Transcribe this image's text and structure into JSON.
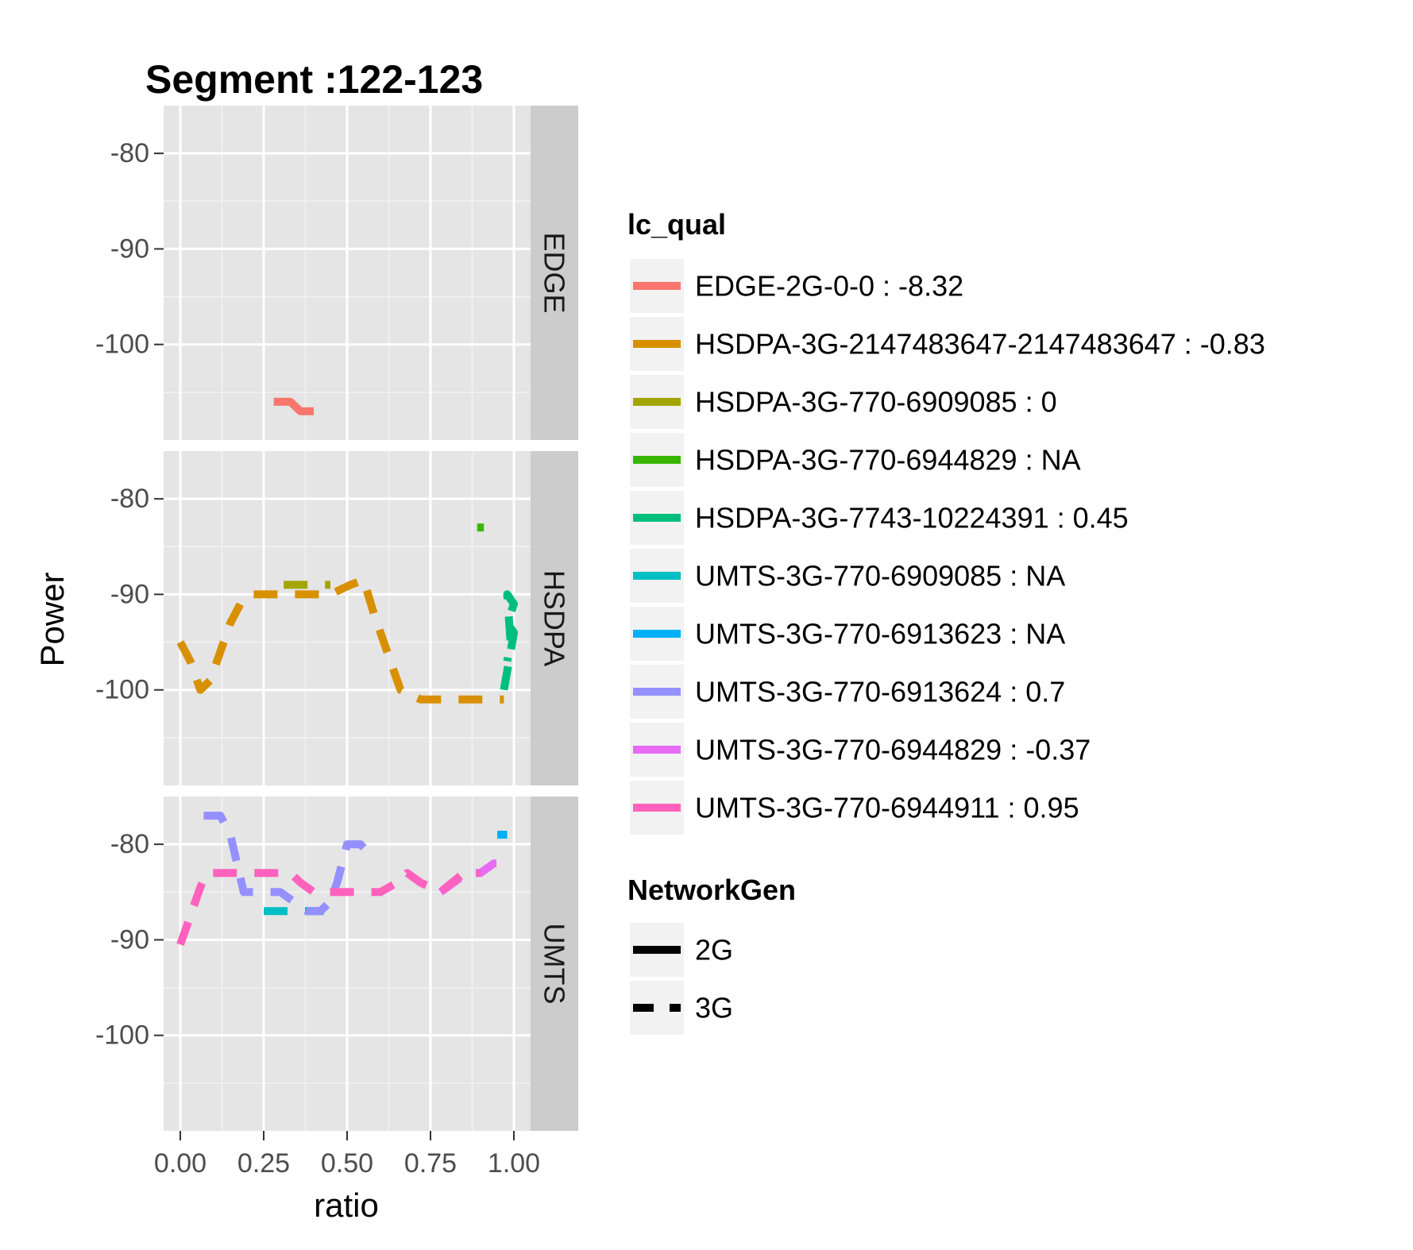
{
  "chart_data": {
    "type": "line",
    "title": "Segment :122-123",
    "xlabel": "ratio",
    "ylabel": "Power",
    "xlim": [
      -0.05,
      1.05
    ],
    "ylim": [
      -110,
      -75
    ],
    "x_ticks": [
      0,
      0.25,
      0.5,
      0.75,
      1.0
    ],
    "x_tick_labels": [
      "0.00",
      "0.25",
      "0.50",
      "0.75",
      "1.00"
    ],
    "y_ticks": [
      -80,
      -90,
      -100
    ],
    "y_tick_labels": [
      "-80",
      "-90",
      "-100"
    ],
    "grid": true,
    "legend_position": "right",
    "facets": [
      "EDGE",
      "HSDPA",
      "UMTS"
    ],
    "legend_color": {
      "title": "lc_qual",
      "entries": [
        {
          "label": "EDGE-2G-0-0 : -8.32",
          "color": "#F8766D"
        },
        {
          "label": "HSDPA-3G-2147483647-2147483647 : -0.83",
          "color": "#D89000"
        },
        {
          "label": "HSDPA-3G-770-6909085 : 0",
          "color": "#A3A500"
        },
        {
          "label": "HSDPA-3G-770-6944829 : NA",
          "color": "#39B600"
        },
        {
          "label": "HSDPA-3G-7743-10224391 : 0.45",
          "color": "#00BF7D"
        },
        {
          "label": "UMTS-3G-770-6909085 : NA",
          "color": "#00BFC4"
        },
        {
          "label": "UMTS-3G-770-6913623 : NA",
          "color": "#00B0F6"
        },
        {
          "label": "UMTS-3G-770-6913624 : 0.7",
          "color": "#9590FF"
        },
        {
          "label": "UMTS-3G-770-6944829 : -0.37",
          "color": "#E76BF3"
        },
        {
          "label": "UMTS-3G-770-6944911 : 0.95",
          "color": "#FF62BC"
        }
      ]
    },
    "legend_linetype": {
      "title": "NetworkGen",
      "entries": [
        {
          "label": "2G",
          "dashed": false
        },
        {
          "label": "3G",
          "dashed": true
        }
      ]
    },
    "series": [
      {
        "facet": "EDGE",
        "color": "#F8766D",
        "dashed": false,
        "x": [
          0.28,
          0.33,
          0.36,
          0.4
        ],
        "y": [
          -106.0,
          -106.0,
          -107.0,
          -107.0
        ]
      },
      {
        "facet": "HSDPA",
        "color": "#D89000",
        "dashed": true,
        "x": [
          0.0,
          0.03,
          0.06,
          0.09,
          0.12,
          0.15,
          0.18,
          0.21,
          0.25,
          0.3,
          0.35,
          0.4,
          0.45,
          0.48,
          0.51,
          0.55,
          0.58,
          0.62,
          0.66,
          0.72,
          0.8,
          0.88,
          0.97
        ],
        "y": [
          -95,
          -97,
          -100,
          -99,
          -96,
          -93,
          -91,
          -90,
          -90,
          -90,
          -90,
          -90,
          -90,
          -89.5,
          -89,
          -88.5,
          -92,
          -96,
          -100,
          -101,
          -101,
          -101,
          -101
        ]
      },
      {
        "facet": "HSDPA",
        "color": "#A3A500",
        "dashed": true,
        "x": [
          0.31,
          0.35,
          0.39,
          0.43,
          0.45
        ],
        "y": [
          -89,
          -89,
          -89,
          -89,
          -89
        ]
      },
      {
        "facet": "HSDPA",
        "color": "#39B600",
        "dashed": false,
        "x": [
          0.89,
          0.91
        ],
        "y": [
          -83,
          -83
        ]
      },
      {
        "facet": "HSDPA",
        "color": "#00BF7D",
        "dashed": true,
        "x": [
          0.97,
          0.98,
          0.99,
          1.0,
          0.98,
          0.99,
          1.0,
          0.98,
          0.99,
          0.98
        ],
        "y": [
          -100,
          -98,
          -96,
          -94,
          -93,
          -92,
          -91,
          -90,
          -95,
          -97
        ]
      },
      {
        "facet": "UMTS",
        "color": "#00BFC4",
        "dashed": true,
        "x": [
          0.25,
          0.3,
          0.35,
          0.4,
          0.43
        ],
        "y": [
          -87,
          -87,
          -87,
          -87,
          -87
        ]
      },
      {
        "facet": "UMTS",
        "color": "#00B0F6",
        "dashed": true,
        "x": [
          0.95,
          0.98
        ],
        "y": [
          -79,
          -79
        ]
      },
      {
        "facet": "UMTS",
        "color": "#9590FF",
        "dashed": true,
        "x": [
          0.07,
          0.12,
          0.15,
          0.17,
          0.19,
          0.21,
          0.25,
          0.3,
          0.34,
          0.38,
          0.42,
          0.45,
          0.47,
          0.5,
          0.54,
          0.58
        ],
        "y": [
          -77,
          -77,
          -79,
          -82,
          -85,
          -85,
          -85,
          -85,
          -86,
          -87,
          -87,
          -86,
          -84,
          -80,
          -80,
          -81.5
        ]
      },
      {
        "facet": "UMTS",
        "color": "#E76BF3",
        "dashed": true,
        "x": [
          0.78,
          0.82,
          0.86,
          0.9,
          0.94,
          0.98
        ],
        "y": [
          -85,
          -84,
          -83,
          -83,
          -82,
          -82
        ]
      },
      {
        "facet": "UMTS",
        "color": "#FF62BC",
        "dashed": true,
        "x": [
          0.0,
          0.03,
          0.06,
          0.08,
          0.12,
          0.18,
          0.25,
          0.3,
          0.33,
          0.36,
          0.4,
          0.45,
          0.5,
          0.55,
          0.6,
          0.65,
          0.68,
          0.72,
          0.78,
          0.85,
          0.9
        ],
        "y": [
          -90.5,
          -87.5,
          -84.5,
          -83,
          -83,
          -83,
          -83,
          -83,
          -83,
          -84,
          -85,
          -85,
          -85,
          -85,
          -85,
          -84,
          -83,
          -84,
          -85,
          -83,
          -83
        ]
      }
    ]
  }
}
